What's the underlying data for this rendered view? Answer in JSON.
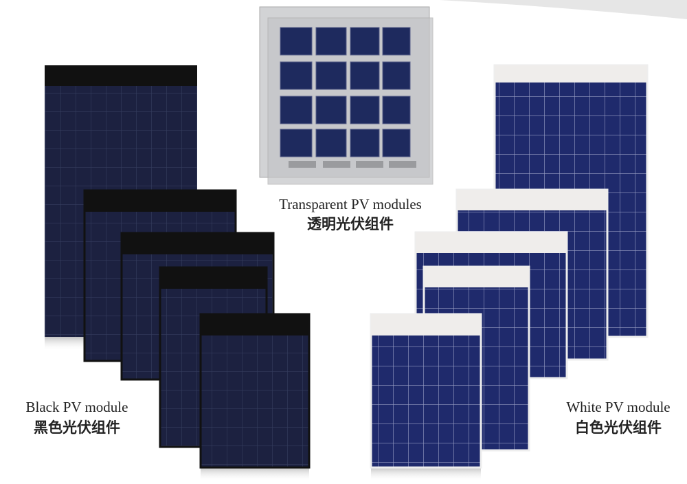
{
  "labels": {
    "transparent": {
      "en": "Transparent PV modules",
      "zh": "透明光伏组件"
    },
    "black": {
      "en": "Black PV module",
      "zh": "黑色光伏组件"
    },
    "white": {
      "en": "White PV module",
      "zh": "白色光伏组件"
    }
  }
}
